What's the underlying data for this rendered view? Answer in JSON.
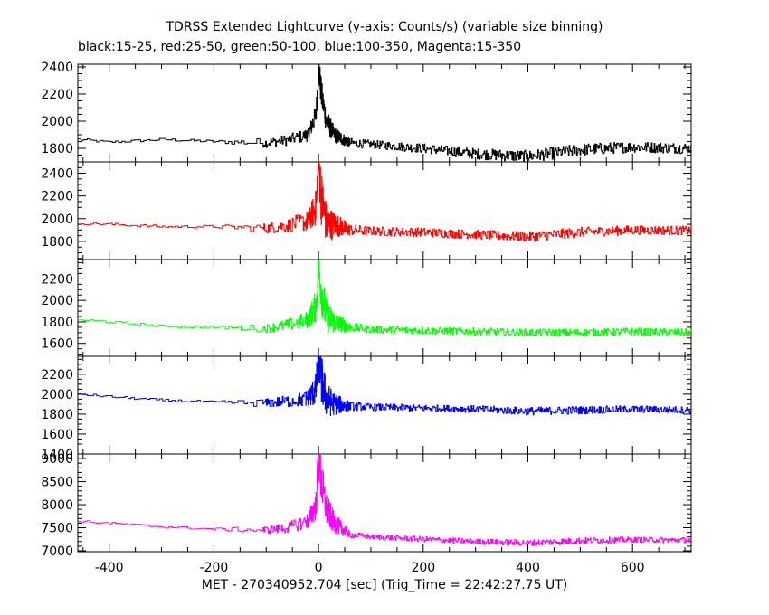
{
  "title": "TDRSS Extended Lightcurve (y-axis: Counts/s) (variable size binning)",
  "subtitle": "black:15-25, red:25-50, green:50-100, blue:100-350, Magenta:15-350",
  "xlabel": "MET - 270340952.704 [sec] (Trig_Time = 22:42:27.75 UT)",
  "chart_data": {
    "type": "line",
    "xlim": [
      -460,
      712
    ],
    "x_ticks": [
      -400,
      -200,
      0,
      200,
      400,
      600
    ],
    "x_minor_step": 50,
    "grid": false,
    "series": [
      {
        "color": "#000000",
        "ylim": [
          1700,
          2420
        ],
        "y_ticks": [
          1800,
          2000,
          2200,
          2400
        ],
        "y_minor_step": 50,
        "x": [
          -460,
          -400,
          -300,
          -200,
          -100,
          -60,
          -20,
          -5,
          0,
          5,
          15,
          30,
          60,
          100,
          200,
          300,
          400,
          500,
          600,
          712
        ],
        "values": [
          1865,
          1845,
          1865,
          1850,
          1840,
          1860,
          1900,
          2050,
          2400,
          2200,
          2000,
          1900,
          1840,
          1830,
          1800,
          1760,
          1740,
          1790,
          1810,
          1800
        ],
        "noise": [
          10,
          10,
          10,
          10,
          35,
          40,
          50,
          80,
          120,
          120,
          90,
          60,
          35,
          30,
          35,
          40,
          45,
          45,
          40,
          40
        ]
      },
      {
        "color": "#ff0000",
        "ylim": [
          1640,
          2500
        ],
        "y_ticks": [
          1800,
          2000,
          2200,
          2400
        ],
        "y_minor_step": 50,
        "x": [
          -460,
          -400,
          -300,
          -200,
          -100,
          -60,
          -20,
          -5,
          0,
          5,
          15,
          30,
          60,
          100,
          200,
          300,
          400,
          500,
          600,
          712
        ],
        "values": [
          1960,
          1950,
          1930,
          1930,
          1915,
          1940,
          1980,
          2100,
          2500,
          2200,
          1950,
          1950,
          1900,
          1890,
          1880,
          1860,
          1840,
          1880,
          1900,
          1895
        ],
        "noise": [
          12,
          12,
          12,
          12,
          45,
          60,
          90,
          160,
          250,
          250,
          180,
          110,
          50,
          40,
          40,
          40,
          45,
          45,
          40,
          40
        ]
      },
      {
        "color": "#00ff00",
        "ylim": [
          1480,
          2380
        ],
        "y_ticks": [
          1600,
          1800,
          2000,
          2200
        ],
        "y_minor_step": 50,
        "x": [
          -460,
          -400,
          -300,
          -200,
          -100,
          -60,
          -20,
          -5,
          0,
          5,
          15,
          30,
          60,
          100,
          200,
          300,
          400,
          500,
          600,
          712
        ],
        "values": [
          1820,
          1800,
          1760,
          1750,
          1740,
          1770,
          1820,
          1950,
          2300,
          2100,
          1850,
          1800,
          1750,
          1730,
          1720,
          1710,
          1700,
          1700,
          1710,
          1700
        ],
        "noise": [
          12,
          12,
          12,
          12,
          40,
          55,
          80,
          150,
          230,
          220,
          160,
          100,
          45,
          35,
          35,
          35,
          35,
          35,
          35,
          35
        ]
      },
      {
        "color": "#0000ff",
        "ylim": [
          1400,
          2380
        ],
        "y_ticks": [
          1400,
          1600,
          1800,
          2000,
          2200
        ],
        "y_minor_step": 50,
        "x": [
          -460,
          -400,
          -300,
          -200,
          -100,
          -60,
          -20,
          -5,
          0,
          5,
          15,
          30,
          60,
          100,
          200,
          300,
          400,
          500,
          600,
          712
        ],
        "values": [
          2000,
          1975,
          1940,
          1920,
          1910,
          1930,
          1960,
          2050,
          2380,
          2150,
          1950,
          1900,
          1880,
          1870,
          1860,
          1850,
          1830,
          1840,
          1850,
          1840
        ],
        "noise": [
          12,
          12,
          12,
          12,
          45,
          60,
          90,
          170,
          270,
          260,
          180,
          110,
          45,
          35,
          35,
          35,
          40,
          40,
          35,
          35
        ]
      },
      {
        "color": "#ff00ff",
        "ylim": [
          6980,
          9100
        ],
        "y_ticks": [
          7000,
          7500,
          8000,
          8500,
          9000
        ],
        "y_minor_step": 100,
        "x": [
          -460,
          -400,
          -300,
          -200,
          -100,
          -60,
          -20,
          -5,
          0,
          5,
          15,
          30,
          60,
          100,
          200,
          300,
          400,
          500,
          600,
          712
        ],
        "values": [
          7640,
          7600,
          7520,
          7470,
          7450,
          7500,
          7650,
          8000,
          9000,
          8500,
          7900,
          7600,
          7350,
          7300,
          7250,
          7200,
          7170,
          7220,
          7240,
          7230
        ],
        "noise": [
          25,
          25,
          25,
          25,
          80,
          110,
          170,
          320,
          550,
          520,
          360,
          220,
          70,
          55,
          60,
          60,
          70,
          70,
          60,
          60
        ]
      }
    ]
  }
}
